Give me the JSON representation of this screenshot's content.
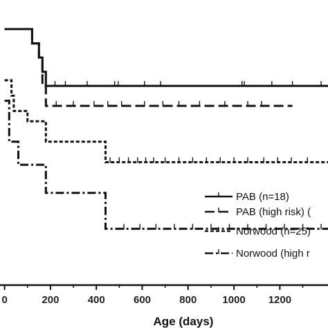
{
  "chart_data": {
    "type": "line",
    "title": "",
    "xlabel": "Age (days)",
    "ylabel": "",
    "xlim": [
      -20,
      1410
    ],
    "ylim": [
      0,
      1
    ],
    "x_ticks": [
      0,
      200,
      400,
      600,
      800,
      1000,
      1200
    ],
    "x_tick_labels": [
      "0",
      "200",
      "400",
      "600",
      "800",
      "1000",
      "1200"
    ],
    "grid": false,
    "legend_position": "bottom-right",
    "series": [
      {
        "name": "PAB (n=18)",
        "dash": "solid",
        "steps": [
          [
            0,
            1.0
          ],
          [
            120,
            0.944
          ],
          [
            150,
            0.889
          ],
          [
            165,
            0.833
          ],
          [
            180,
            0.778
          ],
          [
            1420,
            0.778
          ]
        ],
        "censors": [
          220,
          265,
          360,
          480,
          495,
          610,
          680,
          1035,
          1045,
          1165,
          1255,
          1380
        ]
      },
      {
        "name": "PAB (high risk) (",
        "dash": "long",
        "steps": [
          [
            0,
            1.0
          ],
          [
            120,
            0.944
          ],
          [
            150,
            0.889
          ],
          [
            165,
            0.778
          ],
          [
            180,
            0.7
          ],
          [
            1255,
            0.7
          ]
        ],
        "censors": [
          225,
          300,
          390,
          450,
          510,
          610,
          690,
          760,
          850,
          960,
          1060,
          1120
        ]
      },
      {
        "name": "Norwood (n=25)",
        "dash": "short",
        "steps": [
          [
            0,
            0.8
          ],
          [
            30,
            0.74
          ],
          [
            40,
            0.68
          ],
          [
            100,
            0.64
          ],
          [
            180,
            0.56
          ],
          [
            440,
            0.48
          ],
          [
            1420,
            0.48
          ]
        ],
        "censors": [
          460,
          500,
          540,
          580,
          615,
          650,
          700,
          760,
          820,
          880,
          940,
          1000,
          1060,
          1130,
          1190,
          1250,
          1320
        ]
      },
      {
        "name": "Norwood (high r",
        "dash": "dashdot",
        "steps": [
          [
            0,
            0.72
          ],
          [
            20,
            0.56
          ],
          [
            60,
            0.47
          ],
          [
            180,
            0.36
          ],
          [
            440,
            0.22
          ],
          [
            1420,
            0.22
          ]
        ],
        "censors": [
          520,
          590,
          660,
          740,
          820,
          900,
          980,
          1060,
          1140,
          1220,
          1300,
          1380
        ]
      }
    ]
  }
}
